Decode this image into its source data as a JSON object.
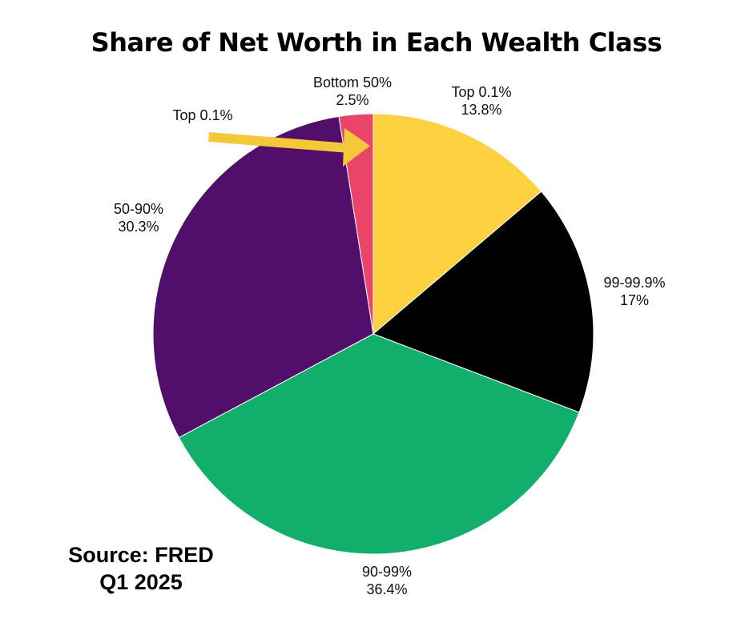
{
  "chart_data": {
    "type": "pie",
    "title": "Share of Net Worth in Each Wealth Class",
    "slices": [
      {
        "label": "Top 0.1%",
        "value": 13.8,
        "value_label": "13.8%",
        "color": "#FDD140"
      },
      {
        "label": "99-99.9%",
        "value": 17,
        "value_label": "17%",
        "color": "#000000"
      },
      {
        "label": "90-99%",
        "value": 36.4,
        "value_label": "36.4%",
        "color": "#12AF6C"
      },
      {
        "label": "50-90%",
        "value": 30.3,
        "value_label": "30.3%",
        "color": "#520E6B"
      },
      {
        "label": "Bottom 50%",
        "value": 2.5,
        "value_label": "2.5%",
        "color": "#EA4469"
      }
    ],
    "annotation": {
      "text": "Top 0.1%",
      "arrow_color": "#F5C83A"
    }
  },
  "source": {
    "line1": "Source: FRED",
    "line2": "Q1 2025"
  }
}
